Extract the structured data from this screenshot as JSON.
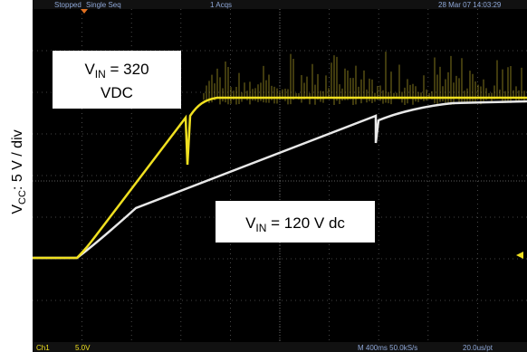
{
  "y_axis_label": {
    "main": "V",
    "sub": "CC",
    "rest": ": 5 V / div"
  },
  "status_bar": {
    "state": "Stopped",
    "mode": "Single Seq",
    "acqs": "1 Acqs",
    "timestamp": "28 Mar 07 14:03:29"
  },
  "bottom_bar": {
    "channel": "Ch1",
    "scale": "5.0V",
    "timebase": "M 400ms 50.0kS/s",
    "resolution": "20.0us/pt"
  },
  "annotations": [
    {
      "main": "V",
      "sub": "IN",
      "rest": " = 320",
      "line2": "VDC"
    },
    {
      "main": "V",
      "sub": "IN",
      "rest": " = 120 V dc"
    }
  ]
}
